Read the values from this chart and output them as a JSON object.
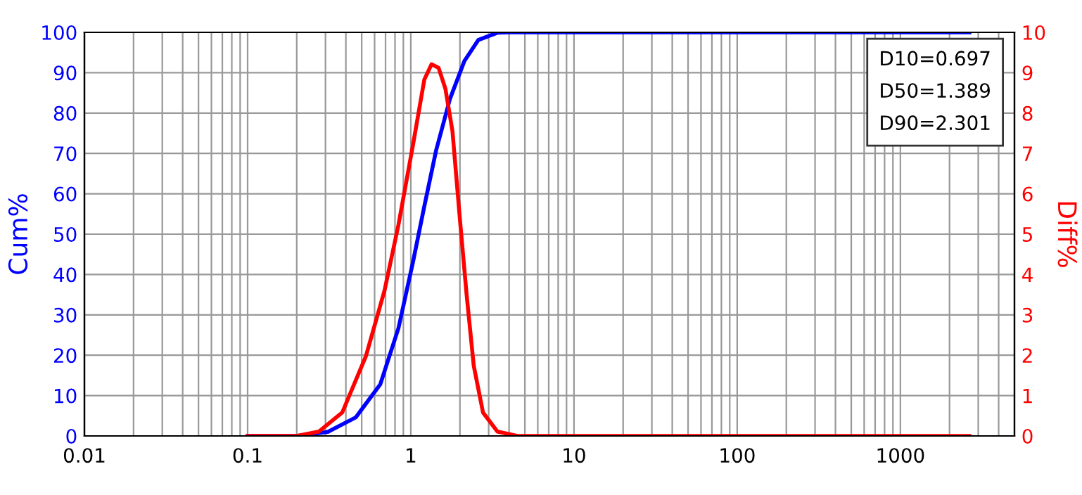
{
  "chart_data": {
    "type": "line",
    "xlabel": null,
    "ylabel": "Cum%",
    "y2label": "Diff%",
    "log": "x",
    "grid": true,
    "legend": false,
    "marker": "none",
    "line_style": "solid",
    "xlim": [
      0.01,
      5000
    ],
    "xticks": [
      0.01,
      {
        "value": 0.02,
        "label": null
      },
      {
        "value": 0.03,
        "label": null
      },
      {
        "value": 0.04,
        "label": null
      },
      {
        "value": 0.05,
        "label": null
      },
      {
        "value": 0.06,
        "label": null
      },
      {
        "value": 0.07,
        "label": null
      },
      {
        "value": 0.08,
        "label": null
      },
      {
        "value": 0.09,
        "label": null
      },
      0.1,
      {
        "value": 0.2,
        "label": null
      },
      {
        "value": 0.3,
        "label": null
      },
      {
        "value": 0.4,
        "label": null
      },
      {
        "value": 0.5,
        "label": null
      },
      {
        "value": 0.6,
        "label": null
      },
      {
        "value": 0.7,
        "label": null
      },
      {
        "value": 0.8,
        "label": null
      },
      {
        "value": 0.9,
        "label": null
      },
      1,
      {
        "value": 2,
        "label": null
      },
      {
        "value": 3,
        "label": null
      },
      {
        "value": 4,
        "label": null
      },
      {
        "value": 5,
        "label": null
      },
      {
        "value": 6,
        "label": null
      },
      {
        "value": 7,
        "label": null
      },
      {
        "value": 8,
        "label": null
      },
      {
        "value": 9,
        "label": null
      },
      10,
      {
        "value": 20,
        "label": null
      },
      {
        "value": 30,
        "label": null
      },
      {
        "value": 40,
        "label": null
      },
      {
        "value": 50,
        "label": null
      },
      {
        "value": 60,
        "label": null
      },
      {
        "value": 70,
        "label": null
      },
      {
        "value": 80,
        "label": null
      },
      {
        "value": 90,
        "label": null
      },
      100,
      {
        "value": 200,
        "label": null
      },
      {
        "value": 300,
        "label": null
      },
      {
        "value": 400,
        "label": null
      },
      {
        "value": 500,
        "label": null
      },
      {
        "value": 600,
        "label": null
      },
      {
        "value": 700,
        "label": null
      },
      {
        "value": 800,
        "label": null
      },
      {
        "value": 900,
        "label": null
      },
      1000,
      {
        "value": 2000,
        "label": null
      },
      {
        "value": 3000,
        "label": null
      },
      {
        "value": 4000,
        "label": null
      }
    ],
    "ylim": [
      0,
      100
    ],
    "yticks": [
      0,
      10,
      20,
      30,
      40,
      50,
      60,
      70,
      80,
      90,
      100
    ],
    "y2lim": [
      0,
      10
    ],
    "y2ticks": [
      0,
      1,
      2,
      3,
      4,
      5,
      6,
      7,
      8,
      9,
      10
    ],
    "series": [
      {
        "color": "#0000ff",
        "axis": "y",
        "x": [
          0.1,
          0.2,
          0.31,
          0.46,
          0.65,
          0.84,
          1.03,
          1.21,
          1.43,
          1.74,
          2.13,
          2.59,
          3.39,
          4,
          2650
        ],
        "values": [
          0,
          0,
          1,
          4.6,
          12.8,
          26.7,
          43,
          56.9,
          70.8,
          83.6,
          92.9,
          98.1,
          99.9,
          100,
          100
        ]
      },
      {
        "color": "#ff0000",
        "axis": "y2",
        "x": [
          0.1,
          0.2,
          0.274,
          0.38,
          0.53,
          0.69,
          0.84,
          1.03,
          1.21,
          1.34,
          1.48,
          1.63,
          1.8,
          1.99,
          2.2,
          2.43,
          2.77,
          3.39,
          4.5,
          2650
        ],
        "values": [
          0,
          0,
          0.11,
          0.58,
          1.97,
          3.6,
          5.23,
          7.2,
          8.83,
          9.21,
          9.12,
          8.6,
          7.55,
          5.46,
          3.48,
          1.74,
          0.58,
          0.11,
          0,
          0
        ]
      }
    ],
    "annotations": [
      "D10=0.697",
      "D50=1.389",
      "D90=2.301"
    ]
  }
}
